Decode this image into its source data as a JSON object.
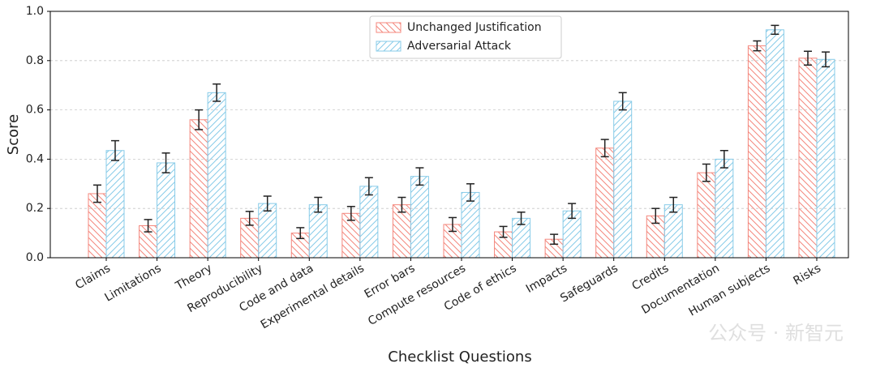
{
  "chart_data": {
    "type": "bar",
    "xlabel": "Checklist Questions",
    "ylabel": "Score",
    "categories": [
      "Claims",
      "Limitations",
      "Theory",
      "Reproducibility",
      "Code and data",
      "Experimental details",
      "Error bars",
      "Compute resources",
      "Code of ethics",
      "Impacts",
      "Safeguards",
      "Credits",
      "Documentation",
      "Human subjects",
      "Risks"
    ],
    "series": [
      {
        "name": "Unchanged Justification",
        "color": "#f4877d",
        "hatch": "\\",
        "values": [
          0.26,
          0.13,
          0.56,
          0.16,
          0.1,
          0.18,
          0.215,
          0.135,
          0.105,
          0.075,
          0.445,
          0.17,
          0.345,
          0.86,
          0.81
        ],
        "errors": [
          0.035,
          0.025,
          0.04,
          0.028,
          0.022,
          0.028,
          0.03,
          0.028,
          0.022,
          0.02,
          0.035,
          0.03,
          0.035,
          0.02,
          0.028
        ]
      },
      {
        "name": "Adversarial Attack",
        "color": "#87cbe8",
        "hatch": "/",
        "values": [
          0.435,
          0.385,
          0.67,
          0.22,
          0.215,
          0.29,
          0.33,
          0.265,
          0.16,
          0.19,
          0.635,
          0.215,
          0.4,
          0.925,
          0.805
        ],
        "errors": [
          0.04,
          0.04,
          0.035,
          0.03,
          0.03,
          0.035,
          0.035,
          0.035,
          0.025,
          0.03,
          0.035,
          0.03,
          0.035,
          0.018,
          0.03
        ]
      }
    ],
    "ylim": [
      0,
      1
    ],
    "yticks": [
      {
        "value": 0,
        "label": "0.0"
      },
      {
        "value": 0.2,
        "label": "0.2"
      },
      {
        "value": 0.4,
        "label": "0.4"
      },
      {
        "value": 0.6,
        "label": "0.6"
      },
      {
        "value": 0.8,
        "label": "0.8"
      },
      {
        "value": 1,
        "label": "1.0"
      }
    ],
    "grid": true,
    "legend": "upper center",
    "watermark": "公众号 · 新智元"
  }
}
